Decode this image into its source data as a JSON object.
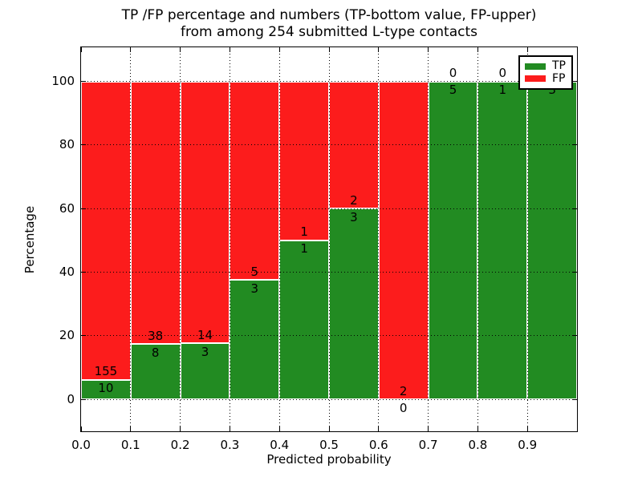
{
  "title": {
    "line1": "TP /FP percentage and numbers (TP-bottom value, FP-upper)",
    "line2": "from among 254 submitted L-type contacts"
  },
  "colors": {
    "tp_green": "#228B22",
    "fp_red": "#FC1C1C",
    "background": "#FFFFFF",
    "axes_and_grid": "#000000",
    "bar_edge": "#FFFFFF"
  },
  "chart_data": {
    "type": "bar",
    "stacked": true,
    "normalized": "percent-of-bin",
    "title": "TP /FP percentage and numbers (TP-bottom value, FP-upper)\nfrom among 254 submitted L-type contacts",
    "xlabel": "Predicted probability",
    "ylabel": "Percentage",
    "total_submitted_contacts": 254,
    "bin_starts": [
      0.0,
      0.1,
      0.2,
      0.3,
      0.4,
      0.5,
      0.6,
      0.7,
      0.8,
      0.9
    ],
    "bin_width": 0.1,
    "x_tick_labels": [
      "0.0",
      "0.1",
      "0.2",
      "0.3",
      "0.4",
      "0.5",
      "0.6",
      "0.7",
      "0.8",
      "0.9"
    ],
    "y_tick_values": [
      0,
      20,
      40,
      60,
      80,
      100
    ],
    "xlim": [
      0.0,
      1.0
    ],
    "ylim": [
      -12,
      111
    ],
    "grid": {
      "on": true,
      "style": "dotted",
      "color": "#000000",
      "above_bars": true
    },
    "series": [
      {
        "name": "TP",
        "color": "#228B22",
        "counts": [
          10,
          8,
          3,
          3,
          1,
          3,
          0,
          5,
          1,
          3
        ]
      },
      {
        "name": "FP",
        "color": "#FC1C1C",
        "counts": [
          155,
          38,
          14,
          5,
          1,
          2,
          2,
          0,
          0,
          0
        ]
      }
    ],
    "tp_percent_by_bin": [
      6.1,
      17.4,
      17.6,
      37.5,
      50.0,
      60.0,
      0.0,
      100.0,
      100.0,
      100.0
    ],
    "label_rule": "FP count above green/red boundary, TP count below boundary",
    "legend": {
      "position": "upper right",
      "entries": [
        {
          "name": "TP",
          "color": "#228B22"
        },
        {
          "name": "FP",
          "color": "#FC1C1C"
        }
      ]
    }
  }
}
